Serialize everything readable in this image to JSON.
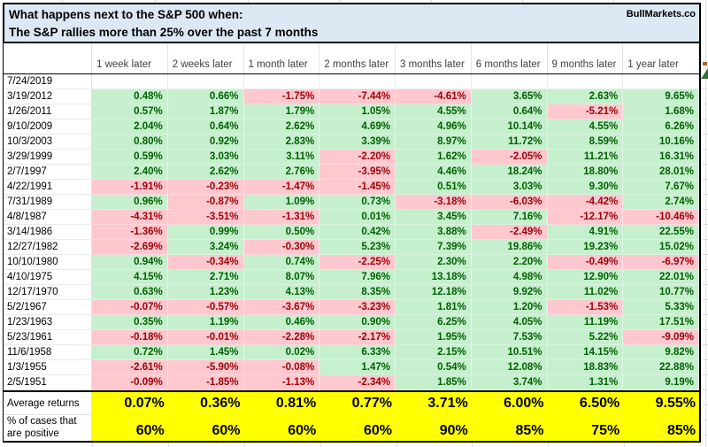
{
  "title": {
    "line1": "What happens next to the S&P 500 when:",
    "line2": "The S&P rallies more than 25% over the past 7 months",
    "brand": "BullMarkets.co"
  },
  "colors": {
    "title_bg": "#dce9f5",
    "positive_bg": "#c6efce",
    "positive_text": "#006100",
    "negative_bg": "#ffc7ce",
    "negative_text": "#9c0006",
    "summary_bg": "#ffff00"
  },
  "table": {
    "columns": [
      "1 week later",
      "2 weeks later",
      "1 month later",
      "2 months later",
      "3 months later",
      "6 months later",
      "9 months later",
      "1 year later"
    ],
    "signal_date": "7/24/2019",
    "rows": [
      {
        "date": "3/19/2012",
        "values": [
          0.48,
          0.66,
          -1.75,
          -7.44,
          -4.61,
          3.65,
          2.63,
          9.65
        ]
      },
      {
        "date": "1/26/2011",
        "values": [
          0.57,
          1.87,
          1.79,
          1.05,
          4.55,
          0.64,
          -5.21,
          1.68
        ]
      },
      {
        "date": "9/10/2009",
        "values": [
          2.04,
          0.64,
          2.62,
          4.69,
          4.96,
          10.14,
          4.55,
          6.26
        ]
      },
      {
        "date": "10/3/2003",
        "values": [
          0.8,
          0.92,
          2.83,
          3.39,
          8.97,
          11.72,
          8.59,
          10.16
        ]
      },
      {
        "date": "3/29/1999",
        "values": [
          0.59,
          3.03,
          3.11,
          -2.2,
          1.62,
          -2.05,
          11.21,
          16.31
        ]
      },
      {
        "date": "2/7/1997",
        "values": [
          2.4,
          2.62,
          2.76,
          -3.95,
          4.46,
          18.24,
          18.8,
          28.01
        ]
      },
      {
        "date": "4/22/1991",
        "values": [
          -1.91,
          -0.23,
          -1.47,
          -1.45,
          0.51,
          3.03,
          9.3,
          7.67
        ]
      },
      {
        "date": "7/31/1989",
        "values": [
          0.96,
          -0.87,
          1.09,
          0.73,
          -3.18,
          -6.03,
          -4.42,
          2.74
        ]
      },
      {
        "date": "4/8/1987",
        "values": [
          -4.31,
          -3.51,
          -1.31,
          0.01,
          3.45,
          7.16,
          -12.17,
          -10.46
        ]
      },
      {
        "date": "3/14/1986",
        "values": [
          -1.36,
          0.99,
          0.5,
          0.42,
          3.88,
          -2.49,
          4.91,
          22.55
        ]
      },
      {
        "date": "12/27/1982",
        "values": [
          -2.69,
          3.24,
          -0.3,
          5.23,
          7.39,
          19.86,
          19.23,
          15.02
        ]
      },
      {
        "date": "10/10/1980",
        "values": [
          0.94,
          -0.34,
          0.74,
          -2.25,
          2.3,
          2.2,
          -0.49,
          -6.97
        ]
      },
      {
        "date": "4/10/1975",
        "values": [
          4.15,
          2.71,
          8.07,
          7.96,
          13.18,
          4.98,
          12.9,
          22.01
        ]
      },
      {
        "date": "12/17/1970",
        "values": [
          0.63,
          1.23,
          4.13,
          8.35,
          12.18,
          9.92,
          11.02,
          10.77
        ]
      },
      {
        "date": "5/2/1967",
        "values": [
          -0.07,
          -0.57,
          -3.67,
          -3.23,
          1.81,
          1.2,
          -1.53,
          5.33
        ]
      },
      {
        "date": "1/23/1963",
        "values": [
          0.35,
          1.19,
          0.46,
          0.9,
          6.25,
          4.05,
          11.19,
          17.51
        ]
      },
      {
        "date": "5/23/1961",
        "values": [
          -0.18,
          -0.01,
          -2.28,
          -2.17,
          1.95,
          7.53,
          5.22,
          -9.09
        ]
      },
      {
        "date": "11/6/1958",
        "values": [
          0.72,
          1.45,
          0.02,
          6.33,
          2.15,
          10.51,
          14.15,
          9.82
        ]
      },
      {
        "date": "1/3/1955",
        "values": [
          -2.61,
          -5.9,
          -0.08,
          1.47,
          0.54,
          12.08,
          18.83,
          22.88
        ]
      },
      {
        "date": "2/5/1951",
        "values": [
          -0.09,
          -1.85,
          -1.13,
          -2.34,
          1.85,
          3.74,
          1.31,
          9.19
        ]
      }
    ],
    "summary": {
      "average_label": "Average returns",
      "averages": [
        "0.07%",
        "0.36%",
        "0.81%",
        "0.77%",
        "3.71%",
        "6.00%",
        "6.50%",
        "9.55%"
      ],
      "positive_label_line1": "% of cases that",
      "positive_label_line2": "are positive",
      "positives": [
        "60%",
        "60%",
        "60%",
        "60%",
        "90%",
        "85%",
        "75%",
        "85%"
      ]
    }
  }
}
